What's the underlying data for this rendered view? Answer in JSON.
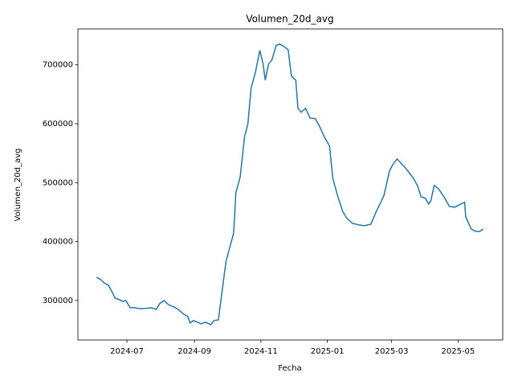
{
  "chart_data": {
    "type": "line",
    "title": "Volumen_20d_avg",
    "x_label": "Fecha",
    "y_label": "Volumen_20d_avg",
    "x": [
      19877,
      19881,
      19884,
      19888,
      19892,
      19894,
      19898,
      19901,
      19904,
      19908,
      19912,
      19916,
      19921,
      19927,
      19932,
      19935,
      19939,
      19943,
      19948,
      19952,
      19957,
      19961,
      19963,
      19966,
      19970,
      19973,
      19977,
      19982,
      19985,
      19989,
      19992,
      19996,
      19999,
      20003,
      20005,
      20009,
      20013,
      20016,
      20019,
      20023,
      20027,
      20030,
      20032,
      20035,
      20038,
      20042,
      20045,
      20049,
      20053,
      20056,
      20060,
      20062,
      20065,
      20069,
      20073,
      20078,
      20082,
      20086,
      20091,
      20094,
      20098,
      20103,
      20107,
      20112,
      20118,
      20123,
      20129,
      20134,
      20138,
      20141,
      20146,
      20149,
      20153,
      20157,
      20160,
      20164,
      20168,
      20172,
      20175,
      20179,
      20182,
      20184,
      20187,
      20191,
      20196,
      20201,
      20206,
      20210,
      20215,
      20216,
      20221,
      20225,
      20229,
      20232
    ],
    "series": [
      {
        "name": "Volumen_20d_avg",
        "color": "#1f77b4",
        "values": [
          339600,
          335500,
          330000,
          326000,
          312300,
          304100,
          301400,
          298600,
          300000,
          287700,
          287700,
          286300,
          286300,
          287700,
          285000,
          294500,
          300000,
          293200,
          289100,
          285000,
          276800,
          272700,
          261800,
          265900,
          263100,
          260400,
          263100,
          259000,
          265900,
          267200,
          310900,
          366900,
          387400,
          414700,
          482900,
          510200,
          578500,
          599000,
          660400,
          687700,
          724600,
          701400,
          674100,
          701400,
          708200,
          732800,
          735500,
          731400,
          725900,
          680900,
          674100,
          626300,
          619500,
          626300,
          609900,
          608500,
          594900,
          578500,
          562100,
          507500,
          480200,
          451500,
          439300,
          431100,
          428300,
          426900,
          429700,
          451500,
          466600,
          478800,
          519800,
          530700,
          540300,
          532100,
          526600,
          517100,
          507500,
          493900,
          476100,
          473400,
          463800,
          469300,
          495200,
          489800,
          476100,
          459700,
          458400,
          462500,
          466600,
          442000,
          421500,
          417400,
          417400,
          421500
        ]
      }
    ],
    "xlim": [
      19860,
      20250
    ],
    "ylim": [
      233000,
      761000
    ],
    "xticks": [
      {
        "value": 19905,
        "label": "2024-07"
      },
      {
        "value": 19967,
        "label": "2024-09"
      },
      {
        "value": 20028,
        "label": "2024-11"
      },
      {
        "value": 20089,
        "label": "2025-01"
      },
      {
        "value": 20148,
        "label": "2025-03"
      },
      {
        "value": 20209,
        "label": "2025-05"
      }
    ],
    "yticks": [
      300000,
      400000,
      500000,
      600000,
      700000
    ],
    "grid": false
  }
}
